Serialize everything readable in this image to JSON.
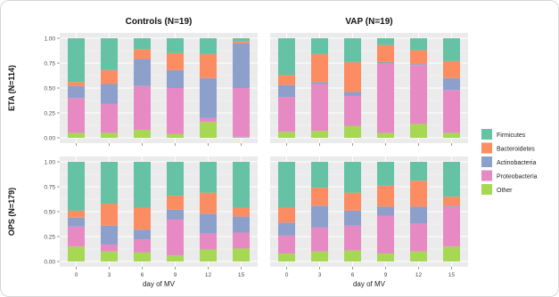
{
  "chart_data": {
    "type": "bar",
    "stacked": true,
    "normalized": true,
    "column_titles": [
      "Controls (N=19)",
      "VAP (N=19)"
    ],
    "row_labels": [
      "ETA (N=114)",
      "OPS (N=179)"
    ],
    "xlabel": "day of MV",
    "categories": [
      "0",
      "3",
      "6",
      "9",
      "12",
      "15"
    ],
    "yticks": [
      "0.00",
      "0.25",
      "0.50",
      "0.75",
      "1.00"
    ],
    "ylim": [
      0,
      1
    ],
    "grid": true,
    "legend_position": "right",
    "stack_order": [
      "Other",
      "Proteobacteria",
      "Actinobacteria",
      "Bacteroidetes",
      "Firmicutes"
    ],
    "legend": [
      {
        "name": "Firmicutes",
        "color": "#66c2a5"
      },
      {
        "name": "Bacteroidetes",
        "color": "#fc8d62"
      },
      {
        "name": "Actinobacteria",
        "color": "#8da0cb"
      },
      {
        "name": "Proteobacteria",
        "color": "#e78ac3"
      },
      {
        "name": "Other",
        "color": "#a6d854"
      }
    ],
    "panels": [
      {
        "column": "Controls (N=19)",
        "row": "ETA (N=114)",
        "series": [
          {
            "name": "Other",
            "values": [
              0.05,
              0.05,
              0.08,
              0.04,
              0.16,
              0.01
            ]
          },
          {
            "name": "Proteobacteria",
            "values": [
              0.35,
              0.29,
              0.44,
              0.46,
              0.04,
              0.49
            ]
          },
          {
            "name": "Actinobacteria",
            "values": [
              0.12,
              0.2,
              0.27,
              0.18,
              0.4,
              0.45
            ]
          },
          {
            "name": "Bacteroidetes",
            "values": [
              0.04,
              0.14,
              0.1,
              0.17,
              0.24,
              0.02
            ]
          },
          {
            "name": "Firmicutes",
            "values": [
              0.44,
              0.32,
              0.11,
              0.15,
              0.16,
              0.03
            ]
          }
        ]
      },
      {
        "column": "VAP (N=19)",
        "row": "ETA (N=114)",
        "series": [
          {
            "name": "Other",
            "values": [
              0.06,
              0.07,
              0.12,
              0.05,
              0.14,
              0.05
            ]
          },
          {
            "name": "Proteobacteria",
            "values": [
              0.35,
              0.47,
              0.3,
              0.7,
              0.59,
              0.43
            ]
          },
          {
            "name": "Actinobacteria",
            "values": [
              0.12,
              0.02,
              0.04,
              0.01,
              0.01,
              0.12
            ]
          },
          {
            "name": "Bacteroidetes",
            "values": [
              0.1,
              0.28,
              0.3,
              0.17,
              0.14,
              0.17
            ]
          },
          {
            "name": "Firmicutes",
            "values": [
              0.37,
              0.16,
              0.24,
              0.07,
              0.12,
              0.23
            ]
          }
        ]
      },
      {
        "column": "Controls (N=19)",
        "row": "OPS (N=179)",
        "series": [
          {
            "name": "Other",
            "values": [
              0.15,
              0.1,
              0.09,
              0.06,
              0.12,
              0.13
            ]
          },
          {
            "name": "Proteobacteria",
            "values": [
              0.2,
              0.07,
              0.13,
              0.36,
              0.16,
              0.16
            ]
          },
          {
            "name": "Actinobacteria",
            "values": [
              0.09,
              0.19,
              0.1,
              0.1,
              0.2,
              0.16
            ]
          },
          {
            "name": "Bacteroidetes",
            "values": [
              0.07,
              0.22,
              0.22,
              0.14,
              0.21,
              0.09
            ]
          },
          {
            "name": "Firmicutes",
            "values": [
              0.49,
              0.42,
              0.46,
              0.34,
              0.31,
              0.46
            ]
          }
        ]
      },
      {
        "column": "VAP (N=19)",
        "row": "OPS (N=179)",
        "series": [
          {
            "name": "Other",
            "values": [
              0.08,
              0.1,
              0.11,
              0.08,
              0.1,
              0.15
            ]
          },
          {
            "name": "Proteobacteria",
            "values": [
              0.18,
              0.24,
              0.25,
              0.38,
              0.28,
              0.4
            ]
          },
          {
            "name": "Actinobacteria",
            "values": [
              0.13,
              0.22,
              0.15,
              0.09,
              0.17,
              0.01
            ]
          },
          {
            "name": "Bacteroidetes",
            "values": [
              0.15,
              0.18,
              0.18,
              0.21,
              0.26,
              0.09
            ]
          },
          {
            "name": "Firmicutes",
            "values": [
              0.46,
              0.26,
              0.31,
              0.24,
              0.19,
              0.35
            ]
          }
        ]
      }
    ]
  }
}
